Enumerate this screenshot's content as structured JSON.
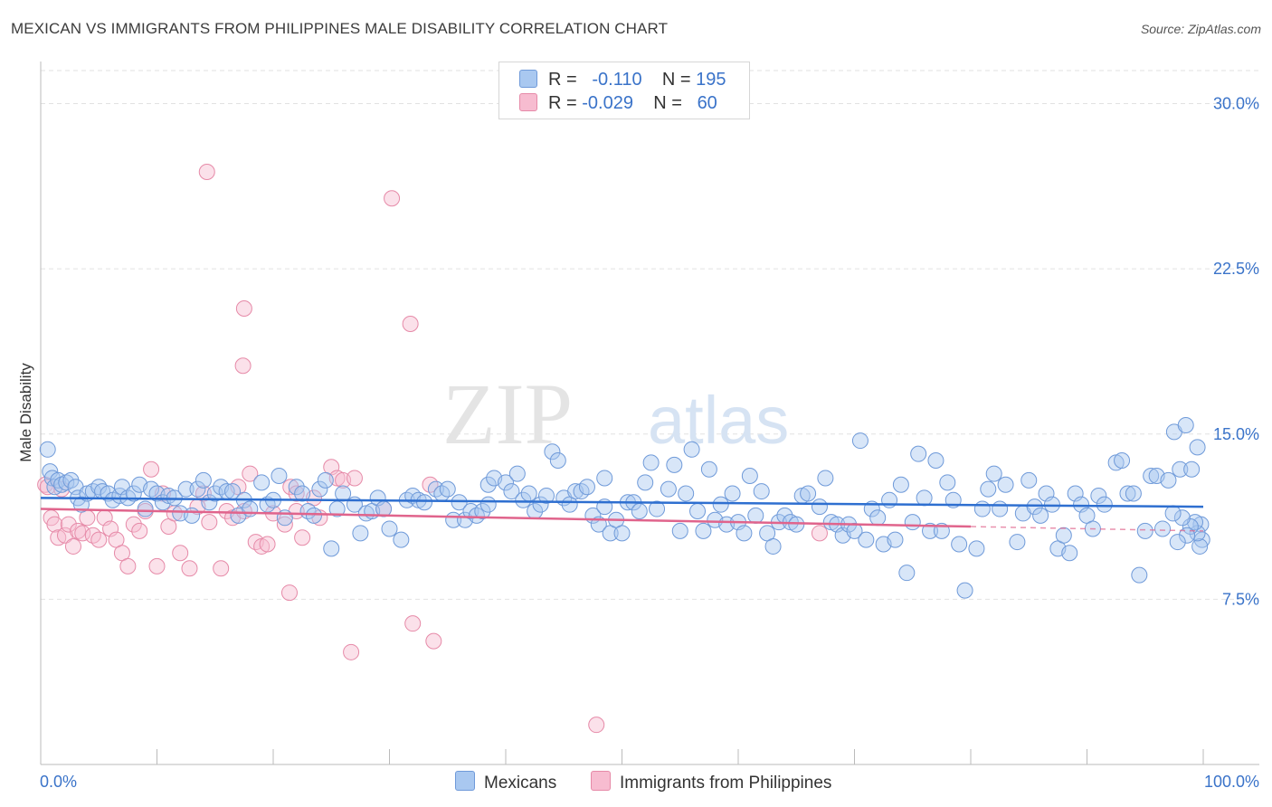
{
  "title": "MEXICAN VS IMMIGRANTS FROM PHILIPPINES MALE DISABILITY CORRELATION CHART",
  "source": "Source: ZipAtlas.com",
  "watermark": {
    "zip": "ZIP",
    "atlas": "atlas"
  },
  "legend": {
    "r_label": "R =",
    "n_label": "N =",
    "series": [
      {
        "name": "Mexicans",
        "r": "-0.110",
        "n": "195",
        "fill": "#a9c8f0",
        "stroke": "#6f9ad9"
      },
      {
        "name": "Immigrants from Philippines",
        "r": "-0.029",
        "n": "60",
        "fill": "#f7bcd0",
        "stroke": "#e68aa8"
      }
    ]
  },
  "colors": {
    "blue_line": "#2e6fd0",
    "pink_line": "#e0648c",
    "axis_label": "#3a73c9",
    "grid": "#e2e2e2"
  },
  "chart_data": {
    "type": "scatter",
    "title": "MEXICAN VS IMMIGRANTS FROM PHILIPPINES MALE DISABILITY CORRELATION CHART",
    "xlabel": "",
    "ylabel": "Male Disability",
    "xlim": [
      0,
      100
    ],
    "ylim": [
      0,
      31.5
    ],
    "x_tick_labels": [
      "0.0%",
      "100.0%"
    ],
    "y_ticks": [
      7.5,
      15.0,
      22.5,
      30.0
    ],
    "y_tick_labels": [
      "7.5%",
      "15.0%",
      "22.5%",
      "30.0%"
    ],
    "grid": true,
    "legend_position": "top-center",
    "series": [
      {
        "name": "Mexicans",
        "trend": {
          "x1": 0,
          "y1": 12.1,
          "x2": 100,
          "y2": 11.7
        },
        "points": [
          [
            0.6,
            14.3
          ],
          [
            0.8,
            13.3
          ],
          [
            1.0,
            13.0
          ],
          [
            1.2,
            12.6
          ],
          [
            1.5,
            12.9
          ],
          [
            1.8,
            12.7
          ],
          [
            2.2,
            12.8
          ],
          [
            2.6,
            12.9
          ],
          [
            3.0,
            12.6
          ],
          [
            3.2,
            12.1
          ],
          [
            3.5,
            11.8
          ],
          [
            4.0,
            12.3
          ],
          [
            4.5,
            12.4
          ],
          [
            5.0,
            12.6
          ],
          [
            5.3,
            12.4
          ],
          [
            5.8,
            12.3
          ],
          [
            6.2,
            12.0
          ],
          [
            6.8,
            12.2
          ],
          [
            7.0,
            12.6
          ],
          [
            7.5,
            12.1
          ],
          [
            8.0,
            12.3
          ],
          [
            8.5,
            12.7
          ],
          [
            9.0,
            11.6
          ],
          [
            9.5,
            12.5
          ],
          [
            10.0,
            12.3
          ],
          [
            10.5,
            11.9
          ],
          [
            11.0,
            12.2
          ],
          [
            11.5,
            12.1
          ],
          [
            12.0,
            11.4
          ],
          [
            12.5,
            12.5
          ],
          [
            13.0,
            11.3
          ],
          [
            13.5,
            12.5
          ],
          [
            14.0,
            12.9
          ],
          [
            14.5,
            11.9
          ],
          [
            15.0,
            12.3
          ],
          [
            15.5,
            12.6
          ],
          [
            16.0,
            12.4
          ],
          [
            16.5,
            12.4
          ],
          [
            17.0,
            11.3
          ],
          [
            17.5,
            12.0
          ],
          [
            18.0,
            11.6
          ],
          [
            19.0,
            12.8
          ],
          [
            19.5,
            11.8
          ],
          [
            20.0,
            12.0
          ],
          [
            20.5,
            13.1
          ],
          [
            21.0,
            11.2
          ],
          [
            22.0,
            12.6
          ],
          [
            22.5,
            12.3
          ],
          [
            23.0,
            11.5
          ],
          [
            23.5,
            11.3
          ],
          [
            24.0,
            12.5
          ],
          [
            24.5,
            12.9
          ],
          [
            25.0,
            9.8
          ],
          [
            25.5,
            11.6
          ],
          [
            26.0,
            12.3
          ],
          [
            27.0,
            11.8
          ],
          [
            27.5,
            10.5
          ],
          [
            28.0,
            11.4
          ],
          [
            28.5,
            11.5
          ],
          [
            29.0,
            12.1
          ],
          [
            29.5,
            11.6
          ],
          [
            30.0,
            10.7
          ],
          [
            31.0,
            10.2
          ],
          [
            31.5,
            12.0
          ],
          [
            32.0,
            12.2
          ],
          [
            32.5,
            12.0
          ],
          [
            33.0,
            11.9
          ],
          [
            34.0,
            12.5
          ],
          [
            34.5,
            12.3
          ],
          [
            35.0,
            12.5
          ],
          [
            35.5,
            11.1
          ],
          [
            36.0,
            11.9
          ],
          [
            36.5,
            11.1
          ],
          [
            37.0,
            11.5
          ],
          [
            37.5,
            11.3
          ],
          [
            38.0,
            11.5
          ],
          [
            38.5,
            11.8
          ],
          [
            38.5,
            12.7
          ],
          [
            39.0,
            13.0
          ],
          [
            40.0,
            12.8
          ],
          [
            40.5,
            12.4
          ],
          [
            41.0,
            13.2
          ],
          [
            41.5,
            12.0
          ],
          [
            42.0,
            12.3
          ],
          [
            42.5,
            11.5
          ],
          [
            43.0,
            11.8
          ],
          [
            43.5,
            12.2
          ],
          [
            44.0,
            14.2
          ],
          [
            44.5,
            13.8
          ],
          [
            45.0,
            12.1
          ],
          [
            45.5,
            11.8
          ],
          [
            46.0,
            12.4
          ],
          [
            46.5,
            12.4
          ],
          [
            47.0,
            12.6
          ],
          [
            47.5,
            11.3
          ],
          [
            48.0,
            10.9
          ],
          [
            48.5,
            13.0
          ],
          [
            48.5,
            11.7
          ],
          [
            49.0,
            10.5
          ],
          [
            49.5,
            11.1
          ],
          [
            50.0,
            10.5
          ],
          [
            50.5,
            11.9
          ],
          [
            51.0,
            11.9
          ],
          [
            51.5,
            11.5
          ],
          [
            52.0,
            12.8
          ],
          [
            52.5,
            13.7
          ],
          [
            53.0,
            11.6
          ],
          [
            54.0,
            12.5
          ],
          [
            54.5,
            13.6
          ],
          [
            55.0,
            10.6
          ],
          [
            55.5,
            12.3
          ],
          [
            56.0,
            14.3
          ],
          [
            56.5,
            11.5
          ],
          [
            57.0,
            10.6
          ],
          [
            57.5,
            13.4
          ],
          [
            58.0,
            11.1
          ],
          [
            58.5,
            11.8
          ],
          [
            59.0,
            10.9
          ],
          [
            59.5,
            12.3
          ],
          [
            60.0,
            11.0
          ],
          [
            60.5,
            10.5
          ],
          [
            61.0,
            13.1
          ],
          [
            61.5,
            11.3
          ],
          [
            62.0,
            12.4
          ],
          [
            62.5,
            10.5
          ],
          [
            63.0,
            9.9
          ],
          [
            63.5,
            11.0
          ],
          [
            64.0,
            11.3
          ],
          [
            64.5,
            11.0
          ],
          [
            65.0,
            10.9
          ],
          [
            65.5,
            12.2
          ],
          [
            66.0,
            12.3
          ],
          [
            67.0,
            11.7
          ],
          [
            67.5,
            13.0
          ],
          [
            68.0,
            11.0
          ],
          [
            68.5,
            10.9
          ],
          [
            69.0,
            10.4
          ],
          [
            69.5,
            10.9
          ],
          [
            70.0,
            10.6
          ],
          [
            70.5,
            14.7
          ],
          [
            71.0,
            10.2
          ],
          [
            71.5,
            11.6
          ],
          [
            72.0,
            11.2
          ],
          [
            72.5,
            10.0
          ],
          [
            73.0,
            12.0
          ],
          [
            73.5,
            10.2
          ],
          [
            74.0,
            12.7
          ],
          [
            74.5,
            8.7
          ],
          [
            75.0,
            11.0
          ],
          [
            75.5,
            14.1
          ],
          [
            76.0,
            12.1
          ],
          [
            76.5,
            10.6
          ],
          [
            77.0,
            13.8
          ],
          [
            77.5,
            10.6
          ],
          [
            78.0,
            12.8
          ],
          [
            78.5,
            12.0
          ],
          [
            79.0,
            10.0
          ],
          [
            79.5,
            7.9
          ],
          [
            80.5,
            9.8
          ],
          [
            81.0,
            11.6
          ],
          [
            81.5,
            12.5
          ],
          [
            82.0,
            13.2
          ],
          [
            82.5,
            11.6
          ],
          [
            83.0,
            12.7
          ],
          [
            84.0,
            10.1
          ],
          [
            84.5,
            11.4
          ],
          [
            85.0,
            12.9
          ],
          [
            85.5,
            11.7
          ],
          [
            86.0,
            11.3
          ],
          [
            86.5,
            12.3
          ],
          [
            87.0,
            11.8
          ],
          [
            87.5,
            9.8
          ],
          [
            88.0,
            10.4
          ],
          [
            88.5,
            9.6
          ],
          [
            89.0,
            12.3
          ],
          [
            89.5,
            11.8
          ],
          [
            90.0,
            11.3
          ],
          [
            90.5,
            10.7
          ],
          [
            91.0,
            12.2
          ],
          [
            91.5,
            11.8
          ],
          [
            92.5,
            13.7
          ],
          [
            93.0,
            13.8
          ],
          [
            93.5,
            12.3
          ],
          [
            94.0,
            12.3
          ],
          [
            94.5,
            8.6
          ],
          [
            95.0,
            10.6
          ],
          [
            95.5,
            13.1
          ],
          [
            96.0,
            13.1
          ],
          [
            96.5,
            10.7
          ],
          [
            97.0,
            12.9
          ],
          [
            97.5,
            15.1
          ],
          [
            98.0,
            13.4
          ],
          [
            98.5,
            15.4
          ],
          [
            99.0,
            13.4
          ],
          [
            99.5,
            14.4
          ],
          [
            99.8,
            10.9
          ],
          [
            99.9,
            10.2
          ],
          [
            99.7,
            9.9
          ],
          [
            99.5,
            10.5
          ],
          [
            99.3,
            11.0
          ],
          [
            98.9,
            10.8
          ],
          [
            98.6,
            10.4
          ],
          [
            98.2,
            11.2
          ],
          [
            97.8,
            10.1
          ],
          [
            97.4,
            11.4
          ]
        ]
      },
      {
        "name": "Immigrants from Philippines",
        "trend": {
          "x1": 0,
          "y1": 11.6,
          "x2": 80,
          "y2": 10.8
        },
        "trend_dashed_end": {
          "x": 100,
          "y": 10.6
        },
        "points": [
          [
            0.4,
            12.7
          ],
          [
            0.6,
            12.6
          ],
          [
            0.9,
            11.2
          ],
          [
            1.2,
            10.9
          ],
          [
            1.5,
            10.3
          ],
          [
            1.8,
            12.5
          ],
          [
            2.1,
            10.4
          ],
          [
            2.4,
            10.9
          ],
          [
            2.8,
            9.9
          ],
          [
            3.2,
            10.6
          ],
          [
            3.6,
            10.5
          ],
          [
            4.0,
            11.2
          ],
          [
            4.5,
            10.4
          ],
          [
            5.0,
            10.2
          ],
          [
            5.5,
            11.2
          ],
          [
            6.0,
            10.7
          ],
          [
            6.5,
            10.2
          ],
          [
            7.0,
            9.6
          ],
          [
            7.5,
            9.0
          ],
          [
            8.0,
            10.9
          ],
          [
            8.5,
            10.6
          ],
          [
            9.0,
            11.5
          ],
          [
            9.5,
            13.4
          ],
          [
            10.0,
            9.0
          ],
          [
            10.5,
            12.3
          ],
          [
            11.0,
            10.8
          ],
          [
            11.5,
            11.4
          ],
          [
            12.0,
            9.6
          ],
          [
            12.8,
            8.9
          ],
          [
            13.5,
            11.7
          ],
          [
            14.0,
            12.3
          ],
          [
            14.5,
            11.0
          ],
          [
            15.5,
            8.9
          ],
          [
            16.0,
            11.5
          ],
          [
            16.5,
            11.2
          ],
          [
            17.0,
            12.6
          ],
          [
            17.5,
            11.5
          ],
          [
            18.0,
            13.2
          ],
          [
            18.5,
            10.1
          ],
          [
            19.0,
            9.9
          ],
          [
            19.5,
            10.0
          ],
          [
            20.0,
            11.4
          ],
          [
            21.0,
            10.9
          ],
          [
            21.5,
            12.6
          ],
          [
            22.0,
            11.5
          ],
          [
            22.5,
            10.3
          ],
          [
            23.5,
            12.1
          ],
          [
            24.0,
            11.2
          ],
          [
            25.0,
            13.5
          ],
          [
            25.5,
            13.0
          ],
          [
            26.0,
            12.9
          ],
          [
            27.0,
            13.0
          ],
          [
            14.3,
            26.9
          ],
          [
            30.2,
            25.7
          ],
          [
            17.5,
            20.7
          ],
          [
            31.8,
            20.0
          ],
          [
            17.4,
            18.1
          ],
          [
            32.0,
            6.4
          ],
          [
            26.7,
            5.1
          ],
          [
            33.8,
            5.6
          ],
          [
            21.4,
            7.8
          ],
          [
            47.8,
            1.8
          ],
          [
            22.0,
            12.3
          ],
          [
            29.5,
            11.6
          ],
          [
            33.5,
            12.7
          ],
          [
            67.0,
            10.5
          ]
        ]
      }
    ]
  }
}
